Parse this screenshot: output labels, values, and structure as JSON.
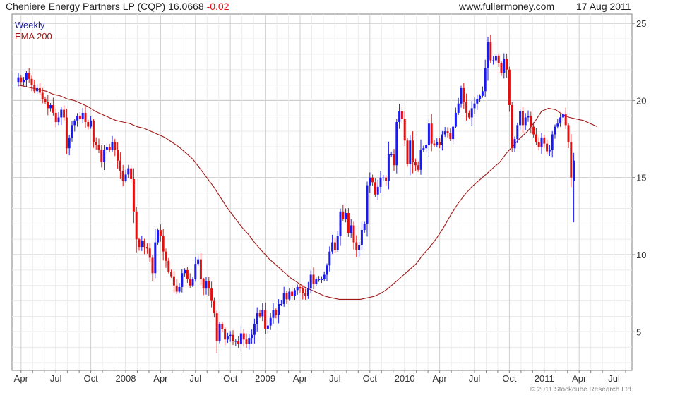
{
  "header": {
    "title": "Cheniere Energy Partners LP (CQP)",
    "price": "16.0668",
    "change": "-0.02",
    "site": "www.fullermoney.com",
    "date": "17 Aug 2011"
  },
  "legend": {
    "period": "Weekly",
    "indicator": "EMA 200"
  },
  "copyright": "© 2011 Stockcube Research Ltd",
  "colors": {
    "up": "#1a1aee",
    "down": "#e01010",
    "ema": "#a01818",
    "grid": "#d0d0d0",
    "title_blue": "#1a1aa0",
    "title_red": "#a01818"
  },
  "chart_data": {
    "type": "candlestick",
    "title": "Cheniere Energy Partners LP (CQP) Weekly",
    "period": "weekly",
    "ylim": [
      2.5,
      25.6
    ],
    "yscale": "linear",
    "y_ticks": [
      5,
      10,
      15,
      20,
      25
    ],
    "x_ticks": [
      "Apr",
      "Jul",
      "Oct",
      "2008",
      "Apr",
      "Jul",
      "Oct",
      "2009",
      "Apr",
      "Jul",
      "Oct",
      "2010",
      "Apr",
      "Jul",
      "Oct",
      "2011",
      "Apr",
      "Jul"
    ],
    "x_start": "Apr 2007",
    "x_end": "Aug 2011",
    "first_tick_week": 1,
    "weeks_per_quarter": 13,
    "grid": true,
    "legend_position": "top-left",
    "close_series": [
      21.5,
      21.2,
      21.3,
      21.8,
      21.4,
      21.0,
      20.6,
      20.8,
      20.5,
      20.1,
      19.9,
      19.5,
      19.7,
      19.2,
      18.6,
      18.9,
      19.4,
      18.9,
      16.9,
      17.6,
      18.4,
      18.7,
      19.0,
      18.8,
      19.2,
      18.6,
      18.3,
      18.7,
      17.3,
      17.1,
      16.8,
      16.0,
      16.8,
      17.0,
      16.8,
      17.3,
      16.8,
      16.1,
      15.4,
      14.8,
      15.2,
      15.6,
      14.9,
      12.8,
      11.0,
      10.5,
      10.9,
      10.5,
      10.4,
      9.8,
      8.8,
      10.8,
      11.6,
      11.2,
      10.2,
      9.6,
      8.9,
      8.6,
      8.0,
      7.6,
      7.9,
      8.8,
      9.0,
      8.4,
      8.0,
      8.4,
      9.4,
      9.7,
      8.4,
      7.8,
      8.3,
      7.8,
      7.0,
      6.2,
      4.4,
      5.5,
      5.2,
      4.5,
      4.7,
      4.8,
      4.4,
      4.4,
      4.2,
      4.9,
      4.5,
      4.2,
      4.6,
      4.8,
      5.5,
      6.2,
      6.0,
      6.4,
      5.2,
      5.4,
      5.9,
      6.4,
      6.1,
      6.8,
      6.8,
      7.5,
      7.1,
      7.6,
      7.3,
      7.7,
      7.9,
      7.8,
      7.5,
      7.3,
      7.8,
      8.7,
      8.1,
      8.4,
      8.4,
      8.4,
      8.7,
      9.3,
      10.2,
      10.8,
      10.3,
      11.2,
      12.8,
      12.3,
      12.7,
      11.4,
      11.9,
      10.8,
      10.3,
      10.6,
      11.6,
      12.0,
      14.5,
      15.0,
      14.7,
      13.9,
      14.4,
      15.0,
      15.0,
      14.8,
      16.5,
      16.5,
      15.8,
      18.6,
      19.3,
      18.8,
      17.4,
      15.9,
      17.4,
      16.0,
      15.8,
      15.5,
      16.8,
      16.9,
      17.1,
      18.5,
      17.2,
      17.1,
      17.3,
      17.1,
      17.8,
      18.0,
      17.9,
      17.5,
      18.3,
      19.2,
      19.8,
      20.8,
      19.9,
      19.2,
      18.9,
      19.5,
      19.8,
      20.1,
      20.3,
      20.6,
      22.1,
      23.8,
      22.6,
      22.6,
      22.9,
      22.4,
      21.8,
      22.7,
      22.0,
      19.7,
      16.9,
      17.5,
      18.4,
      19.3,
      18.4,
      18.9,
      19.0,
      18.3,
      17.8,
      17.3,
      17.0,
      17.6,
      17.2,
      16.7,
      16.8,
      17.8,
      18.3,
      18.5,
      18.9,
      19.1,
      18.4,
      17.3,
      15.0,
      16.1
    ],
    "ema200": [
      21.0,
      20.9,
      20.8,
      20.7,
      20.6,
      20.4,
      20.3,
      20.1,
      20.0,
      19.8,
      19.6,
      19.3,
      19.1,
      18.9,
      18.7,
      18.6,
      18.5,
      18.3,
      18.2,
      18.0,
      17.8,
      17.6,
      17.3,
      17.0,
      16.6,
      16.2,
      15.6,
      15.0,
      14.4,
      13.7,
      13.0,
      12.4,
      11.8,
      11.3,
      10.7,
      10.2,
      9.7,
      9.3,
      8.9,
      8.5,
      8.2,
      7.9,
      7.7,
      7.5,
      7.3,
      7.2,
      7.1,
      7.1,
      7.1,
      7.1,
      7.2,
      7.3,
      7.5,
      7.8,
      8.2,
      8.6,
      9.0,
      9.4,
      10.0,
      10.5,
      11.1,
      11.8,
      12.6,
      13.3,
      13.9,
      14.4,
      14.8,
      15.2,
      15.6,
      16.0,
      16.6,
      17.1,
      17.6,
      18.0,
      18.6,
      19.3,
      19.5,
      19.4,
      19.1,
      18.9,
      18.8,
      18.7,
      18.5,
      18.3
    ],
    "ema_x_start_week": 0,
    "ema_x_step_weeks": 2.6,
    "last_week": {
      "open": 14.8,
      "high": 16.6,
      "low": 12.1,
      "close": 16.1
    }
  }
}
